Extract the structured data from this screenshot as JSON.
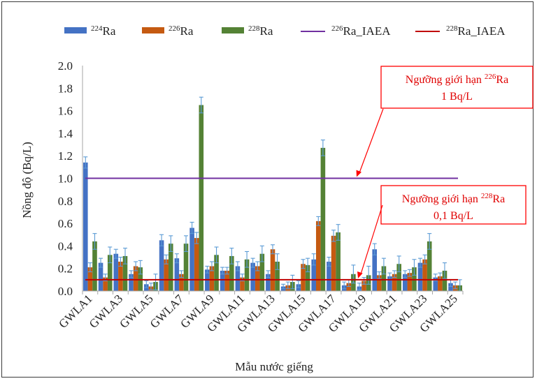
{
  "chart_data": {
    "type": "bar",
    "categories": [
      "GWLA1",
      "GWLA2",
      "GWLA3",
      "GWLA4",
      "GWLA5",
      "GWLA6",
      "GWLA7",
      "GWLA8",
      "GWLA9",
      "GWLA10",
      "GWLA11",
      "GWLA12",
      "GWLA13",
      "GWLA14",
      "GWLA15",
      "GWLA16",
      "GWLA17",
      "GWLA18",
      "GWLA19",
      "GWLA20",
      "GWLA21",
      "GWLA22",
      "GWLA23",
      "GWLA24",
      "GWLA25"
    ],
    "tick_labels_shown": [
      "GWLA1",
      "GWLA3",
      "GWLA5",
      "GWLA7",
      "GWLA9",
      "GWLA11",
      "GWLA13",
      "GWLA15",
      "GWLA17",
      "GWLA19",
      "GWLA21",
      "GWLA23",
      "GWLA25"
    ],
    "series": [
      {
        "name": "224Ra",
        "name_base": "Ra",
        "name_sup": "224",
        "color": "#4472c4",
        "values": [
          1.14,
          0.25,
          0.33,
          0.15,
          0.06,
          0.45,
          0.29,
          0.56,
          0.19,
          0.18,
          0.22,
          0.25,
          0.15,
          0.04,
          0.06,
          0.28,
          0.26,
          0.05,
          0.04,
          0.37,
          0.13,
          0.15,
          0.25,
          0.12,
          0.07
        ],
        "errors": [
          0.05,
          0.04,
          0.04,
          0.03,
          0.03,
          0.05,
          0.04,
          0.05,
          0.03,
          0.03,
          0.04,
          0.04,
          0.03,
          0.02,
          0.03,
          0.05,
          0.04,
          0.03,
          0.03,
          0.05,
          0.03,
          0.03,
          0.04,
          0.03,
          0.03
        ]
      },
      {
        "name": "226Ra",
        "name_base": "Ra",
        "name_sup": "226",
        "color": "#c55a11",
        "values": [
          0.21,
          0.12,
          0.26,
          0.22,
          0.04,
          0.28,
          0.15,
          0.47,
          0.22,
          0.18,
          0.12,
          0.22,
          0.37,
          0.05,
          0.24,
          0.62,
          0.49,
          0.07,
          0.09,
          0.14,
          0.15,
          0.16,
          0.28,
          0.13,
          0.05
        ],
        "errors": [
          0.04,
          0.03,
          0.04,
          0.04,
          0.03,
          0.04,
          0.03,
          0.05,
          0.04,
          0.03,
          0.03,
          0.04,
          0.04,
          0.03,
          0.04,
          0.04,
          0.05,
          0.03,
          0.03,
          0.03,
          0.03,
          0.03,
          0.04,
          0.03,
          0.03
        ]
      },
      {
        "name": "228Ra",
        "name_base": "Ra",
        "name_sup": "228",
        "color": "#548235",
        "values": [
          0.44,
          0.32,
          0.31,
          0.21,
          0.08,
          0.42,
          0.42,
          1.65,
          0.32,
          0.31,
          0.28,
          0.33,
          0.26,
          0.08,
          0.23,
          1.27,
          0.52,
          0.15,
          0.14,
          0.22,
          0.24,
          0.21,
          0.44,
          0.18,
          0.05
        ],
        "errors": [
          0.07,
          0.07,
          0.07,
          0.06,
          0.07,
          0.07,
          0.07,
          0.07,
          0.07,
          0.07,
          0.07,
          0.07,
          0.07,
          0.06,
          0.06,
          0.07,
          0.07,
          0.08,
          0.08,
          0.07,
          0.07,
          0.07,
          0.07,
          0.07,
          0.05
        ]
      }
    ],
    "reference_lines": [
      {
        "name": "226Ra_IAEA",
        "name_sup": "226",
        "name_base": "Ra_IAEA",
        "value": 1.0,
        "color": "#7030a0"
      },
      {
        "name": "228Ra_IAEA",
        "name_sup": "228",
        "name_base": "Ra_IAEA",
        "value": 0.1,
        "color": "#c00000"
      }
    ],
    "annotations": [
      {
        "line1_pre": "Ngưỡng giới hạn ",
        "line1_sup": "226",
        "line1_post": "Ra",
        "line2": "1 Bq/L",
        "target_value": 1.0,
        "color": "#ff0000"
      },
      {
        "line1_pre": "Ngưỡng giới hạn ",
        "line1_sup": "228",
        "line1_post": "Ra",
        "line2": "0,1 Bq/L",
        "target_value": 0.1,
        "color": "#ff0000"
      }
    ],
    "xlabel": "Mẫu nước giếng",
    "ylabel": "Nồng độ (Bq/L)",
    "ylim": [
      0,
      2.0
    ],
    "yticks": [
      "0.0",
      "0.2",
      "0.4",
      "0.6",
      "0.8",
      "1.0",
      "1.2",
      "1.4",
      "1.6",
      "1.8",
      "2.0"
    ],
    "grid": false,
    "legend_position": "top"
  }
}
